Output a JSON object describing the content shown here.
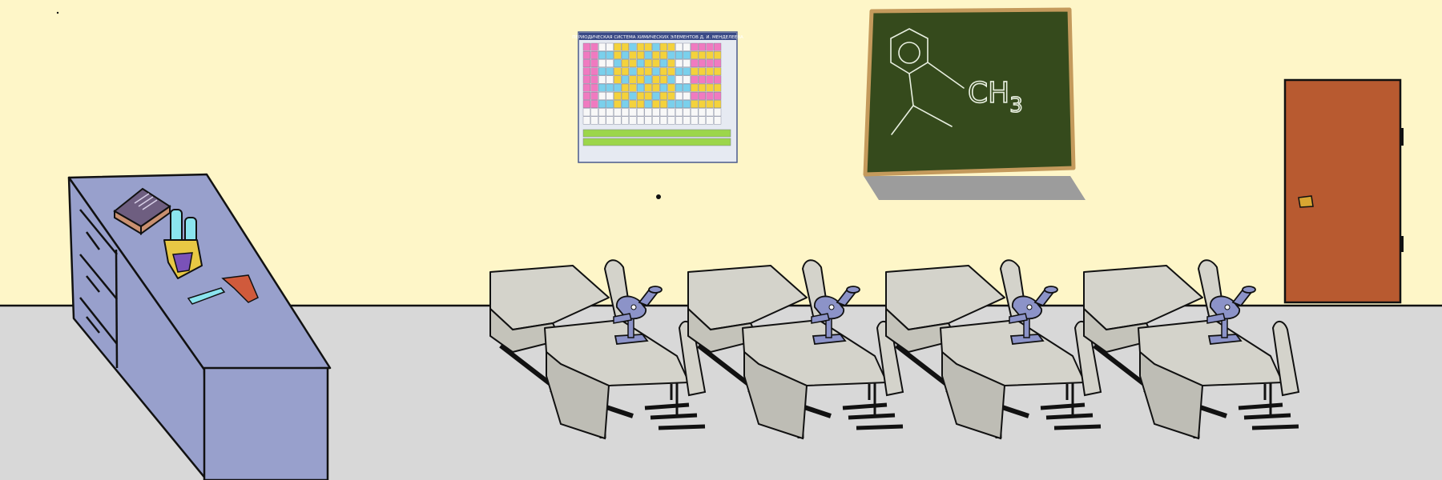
{
  "scene": {
    "name": "chemistry-classroom",
    "colors": {
      "wall": "#fef6c8",
      "floor": "#d8d8d8",
      "outline": "#111111",
      "counter": "#98a0cc",
      "desk": "#d4d3cb",
      "microscope": "#8c93c8",
      "chalkboard": "#354a1c",
      "chalkboard_frame": "#c49a5c",
      "door": "#b85a30",
      "book": "#6e5e80",
      "test_tube_liquid": "#8be4ee",
      "tube_rack": "#e8c844",
      "sponge": "#d05a3c",
      "scalpel": "#8be4ee"
    }
  },
  "poster": {
    "title": "ПЕРИОДИЧЕСКАЯ СИСТЕМА ХИМИЧЕСКИХ ЭЛЕМЕНТОВ Д. И. МЕНДЕЛЕЕВА",
    "colors": [
      "#f07ac0",
      "#f4d23c",
      "#7ad0ec",
      "#f8f8f8",
      "#9cd64a"
    ]
  },
  "chalkboard": {
    "formula": "CH3",
    "formula_main": "CH",
    "formula_sub": "3"
  },
  "door": {
    "state": "closed"
  },
  "lab_desks": {
    "count": 4
  }
}
